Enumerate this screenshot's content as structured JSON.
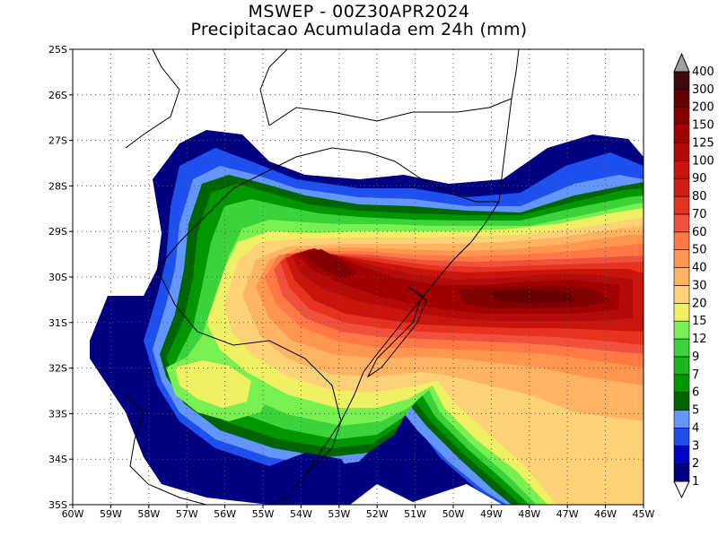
{
  "title": "MSWEP - 00Z30APR2024",
  "subtitle": "Precipitacao Acumulada em 24h (mm)",
  "map": {
    "lon_range": [
      -60,
      -45
    ],
    "lat_range": [
      -35,
      -25
    ],
    "grid": "dotted",
    "lat_ticks": [
      {
        "value": -25,
        "label": "25S"
      },
      {
        "value": -26,
        "label": "26S"
      },
      {
        "value": -27,
        "label": "27S"
      },
      {
        "value": -28,
        "label": "28S"
      },
      {
        "value": -29,
        "label": "29S"
      },
      {
        "value": -30,
        "label": "30S"
      },
      {
        "value": -31,
        "label": "31S"
      },
      {
        "value": -32,
        "label": "32S"
      },
      {
        "value": -33,
        "label": "33S"
      },
      {
        "value": -34,
        "label": "34S"
      },
      {
        "value": -35,
        "label": "35S"
      }
    ],
    "lon_ticks": [
      {
        "value": -60,
        "label": "60W"
      },
      {
        "value": -59,
        "label": "59W"
      },
      {
        "value": -58,
        "label": "58W"
      },
      {
        "value": -57,
        "label": "57W"
      },
      {
        "value": -56,
        "label": "56W"
      },
      {
        "value": -55,
        "label": "55W"
      },
      {
        "value": -54,
        "label": "54W"
      },
      {
        "value": -53,
        "label": "53W"
      },
      {
        "value": -52,
        "label": "52W"
      },
      {
        "value": -51,
        "label": "51W"
      },
      {
        "value": -50,
        "label": "50W"
      },
      {
        "value": -49,
        "label": "49W"
      },
      {
        "value": -48,
        "label": "48W"
      },
      {
        "value": -47,
        "label": "47W"
      },
      {
        "value": -46,
        "label": "46W"
      },
      {
        "value": -45,
        "label": "45W"
      }
    ]
  },
  "colorbar": {
    "levels": [
      {
        "label": "1",
        "color": "#ffffff"
      },
      {
        "label": "2",
        "color": "#000080"
      },
      {
        "label": "3",
        "color": "#0000c8"
      },
      {
        "label": "4",
        "color": "#1e50f0"
      },
      {
        "label": "5",
        "color": "#6496ff"
      },
      {
        "label": "6",
        "color": "#006400"
      },
      {
        "label": "7",
        "color": "#009600"
      },
      {
        "label": "9",
        "color": "#1eb41e"
      },
      {
        "label": "12",
        "color": "#3cd23c"
      },
      {
        "label": "15",
        "color": "#78f050"
      },
      {
        "label": "20",
        "color": "#f0f064"
      },
      {
        "label": "30",
        "color": "#ffd278"
      },
      {
        "label": "40",
        "color": "#ffb464"
      },
      {
        "label": "50",
        "color": "#ff9650"
      },
      {
        "label": "60",
        "color": "#ff7846"
      },
      {
        "label": "70",
        "color": "#f0503c"
      },
      {
        "label": "80",
        "color": "#e6321e"
      },
      {
        "label": "90",
        "color": "#d21e14"
      },
      {
        "label": "100",
        "color": "#c8140a"
      },
      {
        "label": "125",
        "color": "#b40a0a"
      },
      {
        "label": "150",
        "color": "#a00000"
      },
      {
        "label": "200",
        "color": "#820000"
      },
      {
        "label": "300",
        "color": "#640000"
      },
      {
        "label": "400",
        "color": "#3c0a0a"
      }
    ],
    "under_color": "#ffffff",
    "over_color": "#a0a0a0"
  }
}
